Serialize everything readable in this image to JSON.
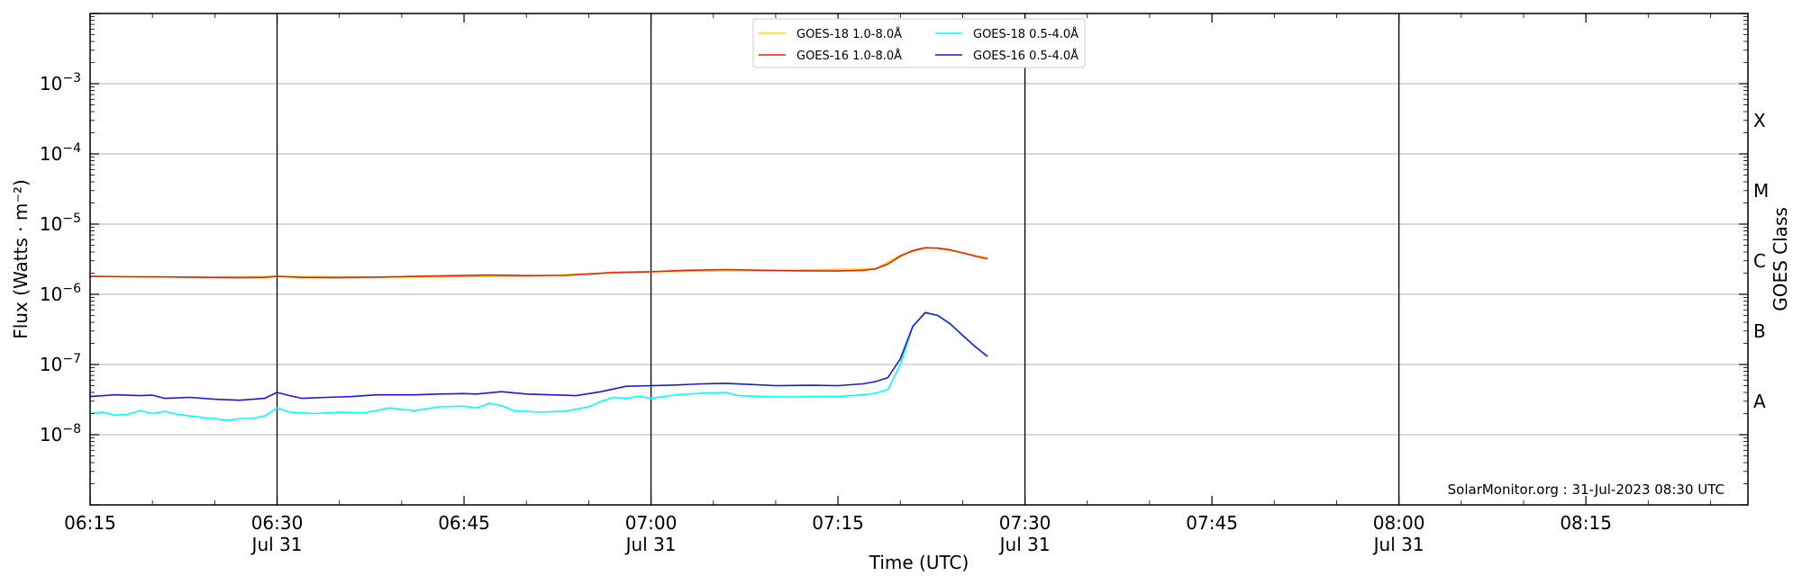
{
  "chart_data": {
    "type": "line",
    "title": "",
    "xlabel": "Time (UTC)",
    "ylabel": "Flux (Watts · m⁻²)",
    "y2label": "GOES Class",
    "x_range": [
      "2023-07-31T06:15",
      "2023-07-31T08:28"
    ],
    "ylim": [
      1e-09,
      0.01
    ],
    "yscale": "log",
    "grid": "horizontal",
    "legend_position": "top-center",
    "x_ticks": [
      {
        "time": "06:15",
        "label": "06:15",
        "sub": ""
      },
      {
        "time": "06:30",
        "label": "06:30",
        "sub": "Jul 31"
      },
      {
        "time": "06:45",
        "label": "06:45",
        "sub": ""
      },
      {
        "time": "07:00",
        "label": "07:00",
        "sub": "Jul 31"
      },
      {
        "time": "07:15",
        "label": "07:15",
        "sub": ""
      },
      {
        "time": "07:30",
        "label": "07:30",
        "sub": "Jul 31"
      },
      {
        "time": "07:45",
        "label": "07:45",
        "sub": ""
      },
      {
        "time": "08:00",
        "label": "08:00",
        "sub": "Jul 31"
      },
      {
        "time": "08:15",
        "label": "08:15",
        "sub": ""
      }
    ],
    "vertical_lines": [
      "06:30",
      "07:00",
      "07:30",
      "08:00"
    ],
    "y_ticks": [
      {
        "value": 1e-08,
        "exp": "-8"
      },
      {
        "value": 1e-07,
        "exp": "-7"
      },
      {
        "value": 1e-06,
        "exp": "-6"
      },
      {
        "value": 1e-05,
        "exp": "-5"
      },
      {
        "value": 0.0001,
        "exp": "-4"
      },
      {
        "value": 0.001,
        "exp": "-3"
      }
    ],
    "goes_classes": [
      {
        "label": "A",
        "value": 3e-08
      },
      {
        "label": "B",
        "value": 3e-07
      },
      {
        "label": "C",
        "value": 3e-06
      },
      {
        "label": "M",
        "value": 3e-05
      },
      {
        "label": "X",
        "value": 0.0003
      }
    ],
    "series": [
      {
        "name": "GOES-18 1.0-8.0Å",
        "color": "#FFD700",
        "x": [
          "06:15",
          "06:25",
          "06:30",
          "06:40",
          "06:50",
          "07:00",
          "07:10",
          "07:18",
          "07:20",
          "07:22",
          "07:23",
          "07:25",
          "07:27"
        ],
        "values": [
          1.8e-06,
          1.75e-06,
          1.8e-06,
          1.75e-06,
          1.82e-06,
          2.1e-06,
          2.2e-06,
          2.3e-06,
          3.6e-06,
          4.6e-06,
          4.5e-06,
          3.9e-06,
          3.3e-06
        ]
      },
      {
        "name": "GOES-16 1.0-8.0Å",
        "color": "#E8210F",
        "x": [
          "06:15",
          "06:18",
          "06:21",
          "06:24",
          "06:27",
          "06:29",
          "06:30",
          "06:32",
          "06:35",
          "06:38",
          "06:41",
          "06:44",
          "06:47",
          "06:50",
          "06:53",
          "06:55",
          "06:57",
          "07:00",
          "07:03",
          "07:06",
          "07:09",
          "07:12",
          "07:15",
          "07:17",
          "07:18",
          "07:19",
          "07:20",
          "07:21",
          "07:22",
          "07:23",
          "07:24",
          "07:25",
          "07:26",
          "07:27"
        ],
        "values": [
          1.8e-06,
          1.78e-06,
          1.77e-06,
          1.74e-06,
          1.73e-06,
          1.74e-06,
          1.8e-06,
          1.74e-06,
          1.73e-06,
          1.76e-06,
          1.8e-06,
          1.84e-06,
          1.88e-06,
          1.85e-06,
          1.86e-06,
          1.95e-06,
          2.05e-06,
          2.1e-06,
          2.2e-06,
          2.25e-06,
          2.2e-06,
          2.16e-06,
          2.15e-06,
          2.2e-06,
          2.3e-06,
          2.7e-06,
          3.5e-06,
          4.2e-06,
          4.6e-06,
          4.55e-06,
          4.3e-06,
          3.9e-06,
          3.5e-06,
          3.2e-06
        ]
      },
      {
        "name": "GOES-18 0.5-4.0Å",
        "color": "#00FFFF",
        "x": [
          "06:15",
          "06:16",
          "06:17",
          "06:18",
          "06:19",
          "06:20",
          "06:21",
          "06:22",
          "06:23",
          "06:24",
          "06:25",
          "06:26",
          "06:27",
          "06:28",
          "06:29",
          "06:30",
          "06:31",
          "06:33",
          "06:35",
          "06:37",
          "06:39",
          "06:41",
          "06:43",
          "06:45",
          "06:46",
          "06:47",
          "06:48",
          "06:49",
          "06:51",
          "06:53",
          "06:55",
          "06:56",
          "06:57",
          "06:58",
          "06:59",
          "07:00",
          "07:02",
          "07:04",
          "07:06",
          "07:07",
          "07:09",
          "07:11",
          "07:13",
          "07:15",
          "07:17",
          "07:18",
          "07:19",
          "07:20",
          "07:21",
          "07:22",
          "07:23",
          "07:24",
          "07:25",
          "07:26",
          "07:27"
        ],
        "values": [
          2e-08,
          2.1e-08,
          1.9e-08,
          1.95e-08,
          2.2e-08,
          2e-08,
          2.15e-08,
          1.95e-08,
          1.85e-08,
          1.75e-08,
          1.7e-08,
          1.6e-08,
          1.7e-08,
          1.7e-08,
          1.85e-08,
          2.4e-08,
          2.1e-08,
          2e-08,
          2.1e-08,
          2.05e-08,
          2.4e-08,
          2.2e-08,
          2.5e-08,
          2.55e-08,
          2.4e-08,
          2.8e-08,
          2.6e-08,
          2.2e-08,
          2.1e-08,
          2.15e-08,
          2.5e-08,
          3e-08,
          3.4e-08,
          3.3e-08,
          3.5e-08,
          3.3e-08,
          3.7e-08,
          3.9e-08,
          4e-08,
          3.6e-08,
          3.5e-08,
          3.45e-08,
          3.5e-08,
          3.5e-08,
          3.7e-08,
          3.9e-08,
          4.4e-08,
          1e-07,
          3.5e-07,
          5.5e-07,
          5e-07,
          3.8e-07,
          2.6e-07,
          1.8e-07,
          1.3e-07
        ]
      },
      {
        "name": "GOES-16 0.5-4.0Å",
        "color": "#1A1ADB",
        "x": [
          "06:15",
          "06:17",
          "06:19",
          "06:20",
          "06:21",
          "06:23",
          "06:25",
          "06:27",
          "06:29",
          "06:30",
          "06:31",
          "06:32",
          "06:34",
          "06:36",
          "06:38",
          "06:41",
          "06:43",
          "06:45",
          "06:46",
          "06:48",
          "06:50",
          "06:52",
          "06:54",
          "06:56",
          "06:58",
          "07:00",
          "07:02",
          "07:04",
          "07:06",
          "07:08",
          "07:10",
          "07:13",
          "07:15",
          "07:17",
          "07:18",
          "07:19",
          "07:20",
          "07:21",
          "07:22",
          "07:23",
          "07:24",
          "07:25",
          "07:26",
          "07:27"
        ],
        "values": [
          3.5e-08,
          3.7e-08,
          3.6e-08,
          3.65e-08,
          3.3e-08,
          3.4e-08,
          3.2e-08,
          3.1e-08,
          3.3e-08,
          4e-08,
          3.6e-08,
          3.3e-08,
          3.4e-08,
          3.5e-08,
          3.7e-08,
          3.7e-08,
          3.8e-08,
          3.85e-08,
          3.8e-08,
          4.1e-08,
          3.8e-08,
          3.7e-08,
          3.6e-08,
          4.1e-08,
          4.9e-08,
          5e-08,
          5.1e-08,
          5.3e-08,
          5.4e-08,
          5.2e-08,
          5e-08,
          5.05e-08,
          5e-08,
          5.3e-08,
          5.7e-08,
          6.5e-08,
          1.2e-07,
          3.5e-07,
          5.5e-07,
          5e-07,
          3.8e-07,
          2.6e-07,
          1.8e-07,
          1.3e-07
        ]
      }
    ],
    "annotation": "SolarMonitor.org : 31-Jul-2023 08:30 UTC"
  }
}
